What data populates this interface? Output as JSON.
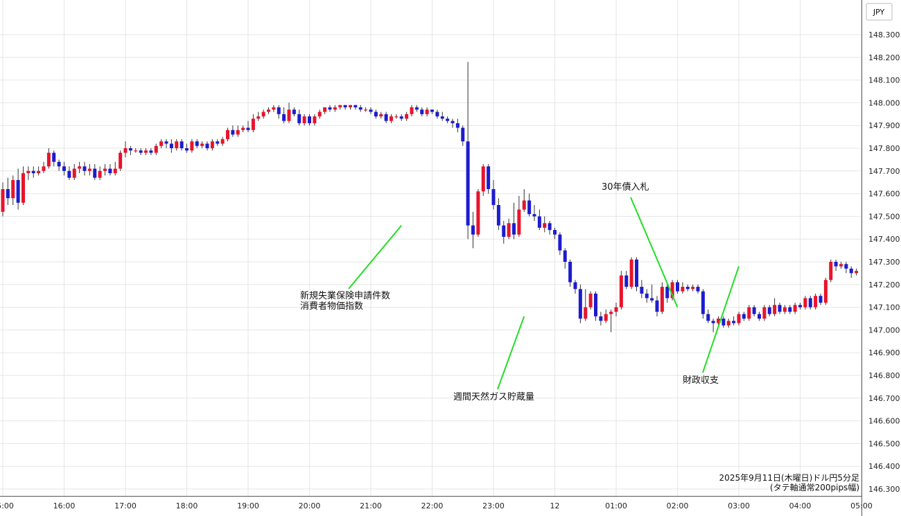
{
  "chart_data": {
    "type": "candlestick",
    "currency_label": "JPY",
    "ylim": [
      146.27,
      148.38
    ],
    "y_ticks": [
      "148.300",
      "148.200",
      "148.100",
      "148.000",
      "147.900",
      "147.800",
      "147.700",
      "147.600",
      "147.500",
      "147.400",
      "147.300",
      "147.200",
      "147.100",
      "147.000",
      "146.900",
      "146.800",
      "146.700",
      "146.600",
      "146.500",
      "146.400",
      "146.300"
    ],
    "x_start": "15:00",
    "x_ticks": [
      "15:00",
      "16:00",
      "17:00",
      "18:00",
      "19:00",
      "20:00",
      "21:00",
      "22:00",
      "23:00",
      "12",
      "01:00",
      "02:00",
      "03:00",
      "04:00",
      "05:00"
    ],
    "colors": {
      "up": "#e8142b",
      "down": "#1c1ccf",
      "annotation_line": "#22dd22",
      "grid": "#e6e6e6"
    },
    "caption_line1": "2025年9月11日(木曜日)ドル円5分足",
    "caption_line2": "(タテ軸通常200pips幅)",
    "annotations": [
      {
        "label": "新規失業保険申請件数",
        "label2": "消費者物価指数",
        "time": "21:30",
        "price": 147.46
      },
      {
        "label": "週間天然ガス貯蔵量",
        "time": "23:30",
        "price": 147.06
      },
      {
        "label": "30年債入札",
        "time": "02:00",
        "price": 147.1
      },
      {
        "label": "財政収支",
        "time": "03:00",
        "price": 147.28
      }
    ],
    "candles": [
      [
        147.52,
        147.62,
        147.5,
        147.65
      ],
      [
        147.62,
        147.58,
        147.55,
        147.67
      ],
      [
        147.58,
        147.66,
        147.55,
        147.68
      ],
      [
        147.66,
        147.56,
        147.53,
        147.71
      ],
      [
        147.56,
        147.69,
        147.55,
        147.72
      ],
      [
        147.69,
        147.7,
        147.66,
        147.72
      ],
      [
        147.7,
        147.69,
        147.67,
        147.72
      ],
      [
        147.69,
        147.7,
        147.68,
        147.72
      ],
      [
        147.7,
        147.72,
        147.69,
        147.74
      ],
      [
        147.72,
        147.78,
        147.71,
        147.8
      ],
      [
        147.78,
        147.74,
        147.72,
        147.79
      ],
      [
        147.74,
        147.72,
        147.7,
        147.75
      ],
      [
        147.72,
        147.7,
        147.68,
        147.74
      ],
      [
        147.7,
        147.67,
        147.66,
        147.72
      ],
      [
        147.67,
        147.71,
        147.66,
        147.73
      ],
      [
        147.71,
        147.72,
        147.69,
        147.74
      ],
      [
        147.72,
        147.7,
        147.68,
        147.74
      ],
      [
        147.7,
        147.71,
        147.68,
        147.73
      ],
      [
        147.71,
        147.67,
        147.66,
        147.73
      ],
      [
        147.67,
        147.7,
        147.66,
        147.72
      ],
      [
        147.7,
        147.71,
        147.68,
        147.73
      ],
      [
        147.71,
        147.69,
        147.68,
        147.73
      ],
      [
        147.69,
        147.71,
        147.68,
        147.74
      ],
      [
        147.71,
        147.78,
        147.7,
        147.79
      ],
      [
        147.78,
        147.8,
        147.76,
        147.83
      ],
      [
        147.8,
        147.79,
        147.77,
        147.81
      ],
      [
        147.79,
        147.79,
        147.78,
        147.8
      ],
      [
        147.79,
        147.78,
        147.77,
        147.8
      ],
      [
        147.78,
        147.79,
        147.77,
        147.8
      ],
      [
        147.79,
        147.78,
        147.77,
        147.8
      ],
      [
        147.78,
        147.81,
        147.77,
        147.82
      ],
      [
        147.81,
        147.83,
        147.8,
        147.84
      ],
      [
        147.83,
        147.82,
        147.8,
        147.84
      ],
      [
        147.82,
        147.8,
        147.78,
        147.84
      ],
      [
        147.8,
        147.83,
        147.79,
        147.84
      ],
      [
        147.83,
        147.8,
        147.79,
        147.84
      ],
      [
        147.8,
        147.79,
        147.78,
        147.82
      ],
      [
        147.79,
        147.83,
        147.78,
        147.84
      ],
      [
        147.83,
        147.81,
        147.8,
        147.84
      ],
      [
        147.81,
        147.82,
        147.8,
        147.83
      ],
      [
        147.82,
        147.8,
        147.79,
        147.83
      ],
      [
        147.8,
        147.83,
        147.79,
        147.84
      ],
      [
        147.83,
        147.82,
        147.81,
        147.84
      ],
      [
        147.82,
        147.84,
        147.81,
        147.85
      ],
      [
        147.84,
        147.88,
        147.83,
        147.89
      ],
      [
        147.88,
        147.86,
        147.85,
        147.9
      ],
      [
        147.86,
        147.88,
        147.85,
        147.9
      ],
      [
        147.88,
        147.89,
        147.87,
        147.9
      ],
      [
        147.89,
        147.88,
        147.87,
        147.92
      ],
      [
        147.88,
        147.93,
        147.87,
        147.95
      ],
      [
        147.93,
        147.94,
        147.92,
        147.96
      ],
      [
        147.94,
        147.96,
        147.93,
        147.97
      ],
      [
        147.96,
        147.97,
        147.95,
        147.98
      ],
      [
        147.97,
        147.98,
        147.96,
        147.99
      ],
      [
        147.98,
        147.95,
        147.93,
        147.99
      ],
      [
        147.95,
        147.92,
        147.91,
        147.98
      ],
      [
        147.92,
        147.97,
        147.91,
        148.0
      ],
      [
        147.97,
        147.95,
        147.94,
        147.98
      ],
      [
        147.95,
        147.91,
        147.9,
        147.97
      ],
      [
        147.91,
        147.94,
        147.9,
        147.95
      ],
      [
        147.94,
        147.91,
        147.9,
        147.95
      ],
      [
        147.91,
        147.94,
        147.9,
        147.95
      ],
      [
        147.94,
        147.96,
        147.93,
        147.97
      ],
      [
        147.96,
        147.98,
        147.95,
        147.98
      ],
      [
        147.98,
        147.97,
        147.96,
        147.99
      ],
      [
        147.97,
        147.98,
        147.96,
        147.99
      ],
      [
        147.98,
        147.99,
        147.97,
        147.99
      ],
      [
        147.99,
        147.98,
        147.97,
        147.99
      ],
      [
        147.98,
        147.99,
        147.97,
        147.99
      ],
      [
        147.99,
        147.98,
        147.97,
        147.99
      ],
      [
        147.98,
        147.97,
        147.96,
        147.99
      ],
      [
        147.97,
        147.97,
        147.96,
        147.98
      ],
      [
        147.97,
        147.96,
        147.95,
        147.98
      ],
      [
        147.96,
        147.94,
        147.93,
        147.97
      ],
      [
        147.94,
        147.95,
        147.93,
        147.96
      ],
      [
        147.95,
        147.92,
        147.91,
        147.96
      ],
      [
        147.92,
        147.94,
        147.91,
        147.95
      ],
      [
        147.94,
        147.94,
        147.93,
        147.95
      ],
      [
        147.94,
        147.93,
        147.92,
        147.95
      ],
      [
        147.93,
        147.95,
        147.92,
        147.96
      ],
      [
        147.95,
        147.98,
        147.94,
        147.99
      ],
      [
        147.98,
        147.97,
        147.96,
        147.99
      ],
      [
        147.97,
        147.95,
        147.94,
        147.98
      ],
      [
        147.95,
        147.97,
        147.94,
        147.98
      ],
      [
        147.97,
        147.96,
        147.95,
        147.97
      ],
      [
        147.96,
        147.94,
        147.93,
        147.97
      ],
      [
        147.94,
        147.93,
        147.92,
        147.96
      ],
      [
        147.93,
        147.92,
        147.91,
        147.94
      ],
      [
        147.92,
        147.91,
        147.89,
        147.93
      ],
      [
        147.91,
        147.89,
        147.87,
        147.93
      ],
      [
        147.89,
        147.83,
        147.81,
        147.9
      ],
      [
        147.83,
        147.46,
        147.4,
        148.18
      ],
      [
        147.46,
        147.42,
        147.36,
        147.52
      ],
      [
        147.42,
        147.61,
        147.41,
        147.62
      ],
      [
        147.61,
        147.72,
        147.59,
        147.73
      ],
      [
        147.72,
        147.62,
        147.6,
        147.73
      ],
      [
        147.62,
        147.55,
        147.53,
        147.66
      ],
      [
        147.55,
        147.46,
        147.44,
        147.58
      ],
      [
        147.46,
        147.41,
        147.38,
        147.48
      ],
      [
        147.41,
        147.47,
        147.4,
        147.49
      ],
      [
        147.47,
        147.42,
        147.4,
        147.56
      ],
      [
        147.42,
        147.53,
        147.41,
        147.59
      ],
      [
        147.53,
        147.57,
        147.52,
        147.62
      ],
      [
        147.57,
        147.51,
        147.5,
        147.6
      ],
      [
        147.51,
        147.5,
        147.48,
        147.55
      ],
      [
        147.5,
        147.45,
        147.44,
        147.53
      ],
      [
        147.45,
        147.47,
        147.43,
        147.5
      ],
      [
        147.47,
        147.44,
        147.42,
        147.48
      ],
      [
        147.44,
        147.42,
        147.4,
        147.45
      ],
      [
        147.42,
        147.35,
        147.33,
        147.43
      ],
      [
        147.35,
        147.3,
        147.27,
        147.36
      ],
      [
        147.3,
        147.21,
        147.19,
        147.31
      ],
      [
        147.21,
        147.18,
        147.16,
        147.22
      ],
      [
        147.18,
        147.05,
        147.03,
        147.2
      ],
      [
        147.05,
        147.1,
        147.04,
        147.18
      ],
      [
        147.1,
        147.16,
        147.09,
        147.17
      ],
      [
        147.16,
        147.06,
        147.04,
        147.17
      ],
      [
        147.06,
        147.04,
        147.02,
        147.08
      ],
      [
        147.04,
        147.07,
        147.03,
        147.09
      ],
      [
        147.07,
        147.08,
        146.99,
        147.09
      ],
      [
        147.08,
        147.1,
        147.06,
        147.12
      ],
      [
        147.1,
        147.24,
        147.09,
        147.26
      ],
      [
        147.24,
        147.19,
        147.18,
        147.26
      ],
      [
        147.19,
        147.31,
        147.18,
        147.32
      ],
      [
        147.31,
        147.19,
        147.17,
        147.32
      ],
      [
        147.19,
        147.16,
        147.14,
        147.22
      ],
      [
        147.16,
        147.14,
        147.12,
        147.18
      ],
      [
        147.14,
        147.13,
        147.12,
        147.2
      ],
      [
        147.13,
        147.08,
        147.06,
        147.15
      ],
      [
        147.08,
        147.19,
        147.07,
        147.21
      ],
      [
        147.19,
        147.14,
        147.12,
        147.21
      ],
      [
        147.14,
        147.21,
        147.13,
        147.22
      ],
      [
        147.21,
        147.17,
        147.16,
        147.22
      ],
      [
        147.17,
        147.19,
        147.16,
        147.21
      ],
      [
        147.19,
        147.18,
        147.17,
        147.2
      ],
      [
        147.18,
        147.19,
        147.17,
        147.2
      ],
      [
        147.19,
        147.17,
        147.16,
        147.2
      ],
      [
        147.17,
        147.07,
        147.05,
        147.18
      ],
      [
        147.07,
        147.04,
        147.03,
        147.09
      ],
      [
        147.04,
        147.03,
        146.99,
        147.05
      ],
      [
        147.03,
        147.05,
        147.02,
        147.06
      ],
      [
        147.05,
        147.02,
        147.01,
        147.06
      ],
      [
        147.02,
        147.04,
        147.01,
        147.05
      ],
      [
        147.04,
        147.03,
        147.02,
        147.06
      ],
      [
        147.03,
        147.07,
        147.02,
        147.08
      ],
      [
        147.07,
        147.05,
        147.04,
        147.08
      ],
      [
        147.05,
        147.1,
        147.04,
        147.11
      ],
      [
        147.1,
        147.07,
        147.06,
        147.11
      ],
      [
        147.07,
        147.05,
        147.04,
        147.08
      ],
      [
        147.05,
        147.1,
        147.04,
        147.11
      ],
      [
        147.1,
        147.07,
        147.06,
        147.11
      ],
      [
        147.07,
        147.11,
        147.06,
        147.14
      ],
      [
        147.11,
        147.08,
        147.07,
        147.12
      ],
      [
        147.08,
        147.1,
        147.07,
        147.11
      ],
      [
        147.1,
        147.08,
        147.07,
        147.11
      ],
      [
        147.08,
        147.11,
        147.07,
        147.12
      ],
      [
        147.11,
        147.1,
        147.09,
        147.12
      ],
      [
        147.1,
        147.14,
        147.09,
        147.15
      ],
      [
        147.14,
        147.1,
        147.09,
        147.15
      ],
      [
        147.1,
        147.15,
        147.09,
        147.16
      ],
      [
        147.15,
        147.12,
        147.11,
        147.16
      ],
      [
        147.12,
        147.22,
        147.11,
        147.23
      ],
      [
        147.22,
        147.3,
        147.21,
        147.31
      ],
      [
        147.3,
        147.28,
        147.26,
        147.31
      ],
      [
        147.28,
        147.29,
        147.27,
        147.3
      ],
      [
        147.29,
        147.27,
        147.25,
        147.3
      ],
      [
        147.27,
        147.25,
        147.23,
        147.28
      ],
      [
        147.25,
        147.26,
        147.24,
        147.27
      ],
      [
        147.26,
        147.29,
        147.25,
        147.3
      ],
      [
        147.29,
        147.3,
        147.28,
        147.31
      ],
      [
        147.3,
        147.28,
        147.27,
        147.31
      ],
      [
        147.28,
        147.28,
        147.27,
        147.29
      ],
      [
        147.28,
        147.27,
        147.26,
        147.29
      ],
      [
        147.27,
        147.26,
        147.25,
        147.28
      ],
      [
        147.26,
        147.24,
        147.23,
        147.27
      ],
      [
        147.24,
        147.17,
        147.15,
        147.25
      ],
      [
        147.17,
        147.13,
        147.11,
        147.18
      ],
      [
        147.13,
        147.11,
        147.08,
        147.14
      ],
      [
        147.11,
        147.1,
        147.09,
        147.12
      ],
      [
        147.1,
        147.11,
        147.09,
        147.12
      ],
      [
        147.11,
        147.1,
        147.09,
        147.12
      ],
      [
        147.1,
        147.14,
        147.09,
        147.15
      ],
      [
        147.14,
        147.17,
        147.13,
        147.18
      ],
      [
        147.17,
        147.18,
        147.16,
        147.19
      ],
      [
        147.18,
        147.16,
        147.15,
        147.19
      ],
      [
        147.16,
        147.18,
        147.15,
        147.19
      ],
      [
        147.18,
        147.16,
        147.15,
        147.19
      ],
      [
        147.16,
        147.18,
        147.15,
        147.19
      ],
      [
        147.18,
        147.16,
        147.15,
        147.19
      ]
    ]
  }
}
